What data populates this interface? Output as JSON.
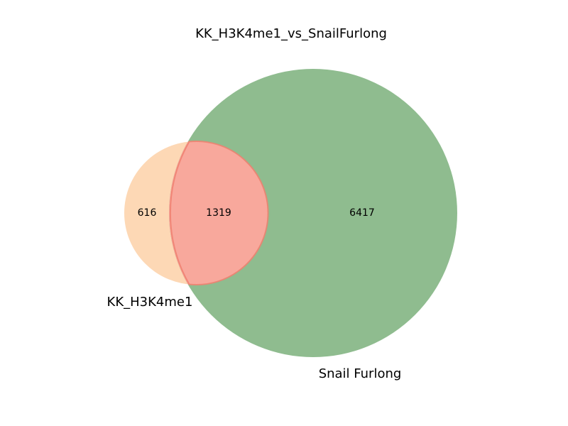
{
  "chart_data": {
    "type": "venn",
    "title": "KK_H3K4me1_vs_SnailFurlong",
    "sets": [
      {
        "name": "KK_H3K4me1",
        "color": "#fdd8b5"
      },
      {
        "name": "Snail Furlong",
        "color": "#8fbc8f"
      }
    ],
    "regions": {
      "only_a": 616,
      "intersection": 1319,
      "only_b": 6417
    },
    "intersection_color": "#f8a89c",
    "intersection_edge_color": "#f08070"
  }
}
